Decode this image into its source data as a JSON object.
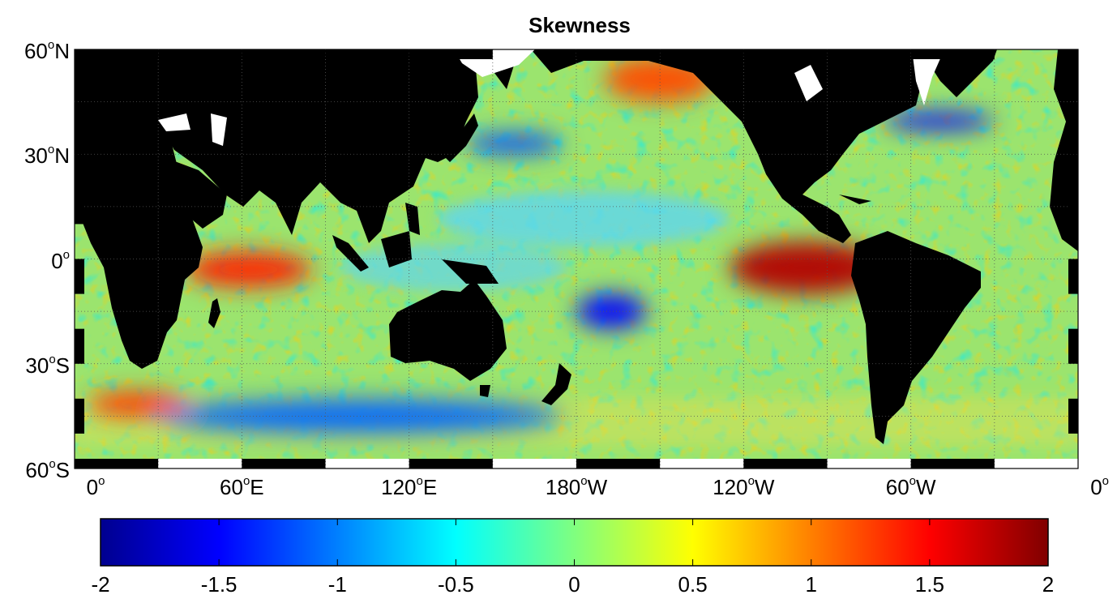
{
  "title": "Skewness",
  "map": {
    "projection": "equirectangular",
    "lon_range": [
      0,
      360
    ],
    "lat_range": [
      -60,
      60
    ],
    "land_color": "#000000",
    "missing_color": "#ffffff",
    "y_ticks": [
      {
        "lat": 60,
        "num": "60",
        "hemi": "N"
      },
      {
        "lat": 30,
        "num": "30",
        "hemi": "N"
      },
      {
        "lat": 0,
        "num": "0",
        "hemi": ""
      },
      {
        "lat": -30,
        "num": "30",
        "hemi": "S"
      },
      {
        "lat": -60,
        "num": "60",
        "hemi": "S"
      }
    ],
    "x_ticks": [
      {
        "lon": 0,
        "num": "0",
        "hemi": ""
      },
      {
        "lon": 60,
        "num": "60",
        "hemi": "E"
      },
      {
        "lon": 120,
        "num": "120",
        "hemi": "E"
      },
      {
        "lon": 180,
        "num": "180",
        "hemi": "W"
      },
      {
        "lon": 240,
        "num": "120",
        "hemi": "W"
      },
      {
        "lon": 300,
        "num": "60",
        "hemi": "W"
      },
      {
        "lon": 360,
        "num": "0",
        "hemi": ""
      }
    ],
    "features": [
      {
        "name": "eastern-equatorial-pacific-positive",
        "lon": [
          235,
          290
        ],
        "lat": [
          -10,
          5
        ],
        "skewness": 1.8
      },
      {
        "name": "western-indian-ocean-positive",
        "lon": [
          40,
          85
        ],
        "lat": [
          -8,
          2
        ],
        "skewness": 1.4
      },
      {
        "name": "agulhas-return-positive",
        "lon": [
          5,
          40
        ],
        "lat": [
          -45,
          -38
        ],
        "skewness": 1.3
      },
      {
        "name": "kuroshio-extension-negative",
        "lon": [
          140,
          175
        ],
        "lat": [
          30,
          36
        ],
        "skewness": -1.2
      },
      {
        "name": "gulf-stream-negative",
        "lon": [
          290,
          330
        ],
        "lat": [
          37,
          42
        ],
        "skewness": -1.5
      },
      {
        "name": "south-pacific-negative",
        "lon": [
          180,
          205
        ],
        "lat": [
          -20,
          -10
        ],
        "skewness": -1.5
      },
      {
        "name": "antarctic-circumpolar-negative",
        "lon": [
          30,
          175
        ],
        "lat": [
          -50,
          -40
        ],
        "skewness": -1.1
      },
      {
        "name": "north-pacific-positive",
        "lon": [
          190,
          230
        ],
        "lat": [
          45,
          58
        ],
        "skewness": 1.2
      }
    ]
  },
  "colorbar": {
    "min": -2,
    "max": 2,
    "labels": [
      "-2",
      "-1.5",
      "-1",
      "-0.5",
      "0",
      "0.5",
      "1",
      "1.5",
      "2"
    ],
    "colormap": "jet",
    "colors": [
      "#00008f",
      "#0000ff",
      "#00ffff",
      "#ffff00",
      "#ff0000",
      "#800000"
    ]
  }
}
